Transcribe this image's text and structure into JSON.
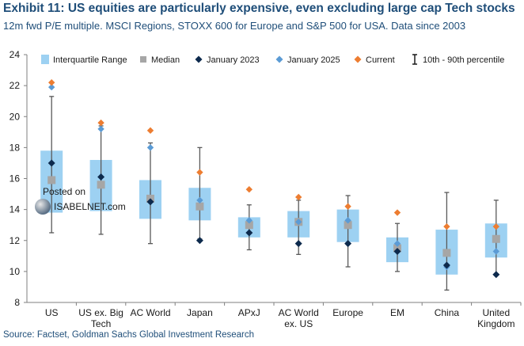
{
  "title": "Exhibit 11: US equities are particularly expensive, even excluding large cap Tech stocks",
  "subtitle": "12m fwd P/E multiple. MSCI Regions, STOXX 600 for Europe and S&P 500 for USA. Data since 2003",
  "source": "Source: Factset, Goldman Sachs Global Investment Research",
  "watermark": {
    "line1": "Posted on",
    "line2": "ISABELNET.com"
  },
  "colors": {
    "iqr": "#9dd1f2",
    "median": "#a6a6a6",
    "jan2023": "#0d2a4d",
    "jan2025": "#5b9bd5",
    "current": "#ed7d31",
    "whisker": "#595959",
    "text": "#1f4e79"
  },
  "chart_data": {
    "type": "box",
    "title": "Exhibit 11: US equities are particularly expensive, even excluding large cap Tech stocks",
    "ylim": [
      8,
      24
    ],
    "yticks": [
      8,
      10,
      12,
      14,
      16,
      18,
      20,
      22,
      24
    ],
    "grid": false,
    "legend": [
      {
        "key": "iqr",
        "label": "Interquartile Range"
      },
      {
        "key": "median",
        "label": "Median"
      },
      {
        "key": "jan2023",
        "label": "January 2023"
      },
      {
        "key": "jan2025",
        "label": "January 2025"
      },
      {
        "key": "current",
        "label": "Current"
      },
      {
        "key": "pct",
        "label": "10th - 90th percentile"
      }
    ],
    "categories": [
      {
        "label": [
          "US"
        ],
        "p10": 12.5,
        "p90": 21.3,
        "q1": 13.8,
        "q3": 17.8,
        "median": 15.9,
        "jan2023": 17.0,
        "jan2025": 21.9,
        "current": 22.2
      },
      {
        "label": [
          "US ex. Big",
          "Tech"
        ],
        "p10": 12.4,
        "p90": 19.4,
        "q1": 13.9,
        "q3": 17.2,
        "median": 15.6,
        "jan2023": 16.1,
        "jan2025": 19.2,
        "current": 19.6
      },
      {
        "label": [
          "AC World"
        ],
        "p10": 11.8,
        "p90": 18.3,
        "q1": 13.4,
        "q3": 15.9,
        "median": 14.7,
        "jan2023": 14.5,
        "jan2025": 18.0,
        "current": 19.1
      },
      {
        "label": [
          "Japan"
        ],
        "p10": 12.1,
        "p90": 18.0,
        "q1": 13.3,
        "q3": 15.4,
        "median": 14.2,
        "jan2023": 12.0,
        "jan2025": 14.6,
        "current": 16.4
      },
      {
        "label": [
          "APxJ"
        ],
        "p10": 11.4,
        "p90": 14.3,
        "q1": 12.2,
        "q3": 13.5,
        "median": 13.0,
        "jan2023": 12.5,
        "jan2025": 13.3,
        "current": 15.3
      },
      {
        "label": [
          "AC World",
          "ex. US"
        ],
        "p10": 11.1,
        "p90": 14.6,
        "q1": 12.2,
        "q3": 13.9,
        "median": 13.2,
        "jan2023": 11.8,
        "jan2025": 13.2,
        "current": 14.8
      },
      {
        "label": [
          "Europe"
        ],
        "p10": 10.3,
        "p90": 14.9,
        "q1": 11.9,
        "q3": 14.0,
        "median": 13.0,
        "jan2023": 11.8,
        "jan2025": 13.3,
        "current": 14.2
      },
      {
        "label": [
          "EM"
        ],
        "p10": 10.0,
        "p90": 13.1,
        "q1": 10.6,
        "q3": 12.2,
        "median": 11.5,
        "jan2023": 11.3,
        "jan2025": 11.8,
        "current": 13.8
      },
      {
        "label": [
          "China"
        ],
        "p10": 8.8,
        "p90": 15.1,
        "q1": 9.8,
        "q3": 12.7,
        "median": 11.2,
        "jan2023": 10.4,
        "jan2025": 10.3,
        "current": 12.9
      },
      {
        "label": [
          "United",
          "Kingdom"
        ],
        "p10": 9.8,
        "p90": 14.6,
        "q1": 10.9,
        "q3": 13.1,
        "median": 12.1,
        "jan2023": 9.8,
        "jan2025": 11.3,
        "current": 12.9
      }
    ]
  }
}
